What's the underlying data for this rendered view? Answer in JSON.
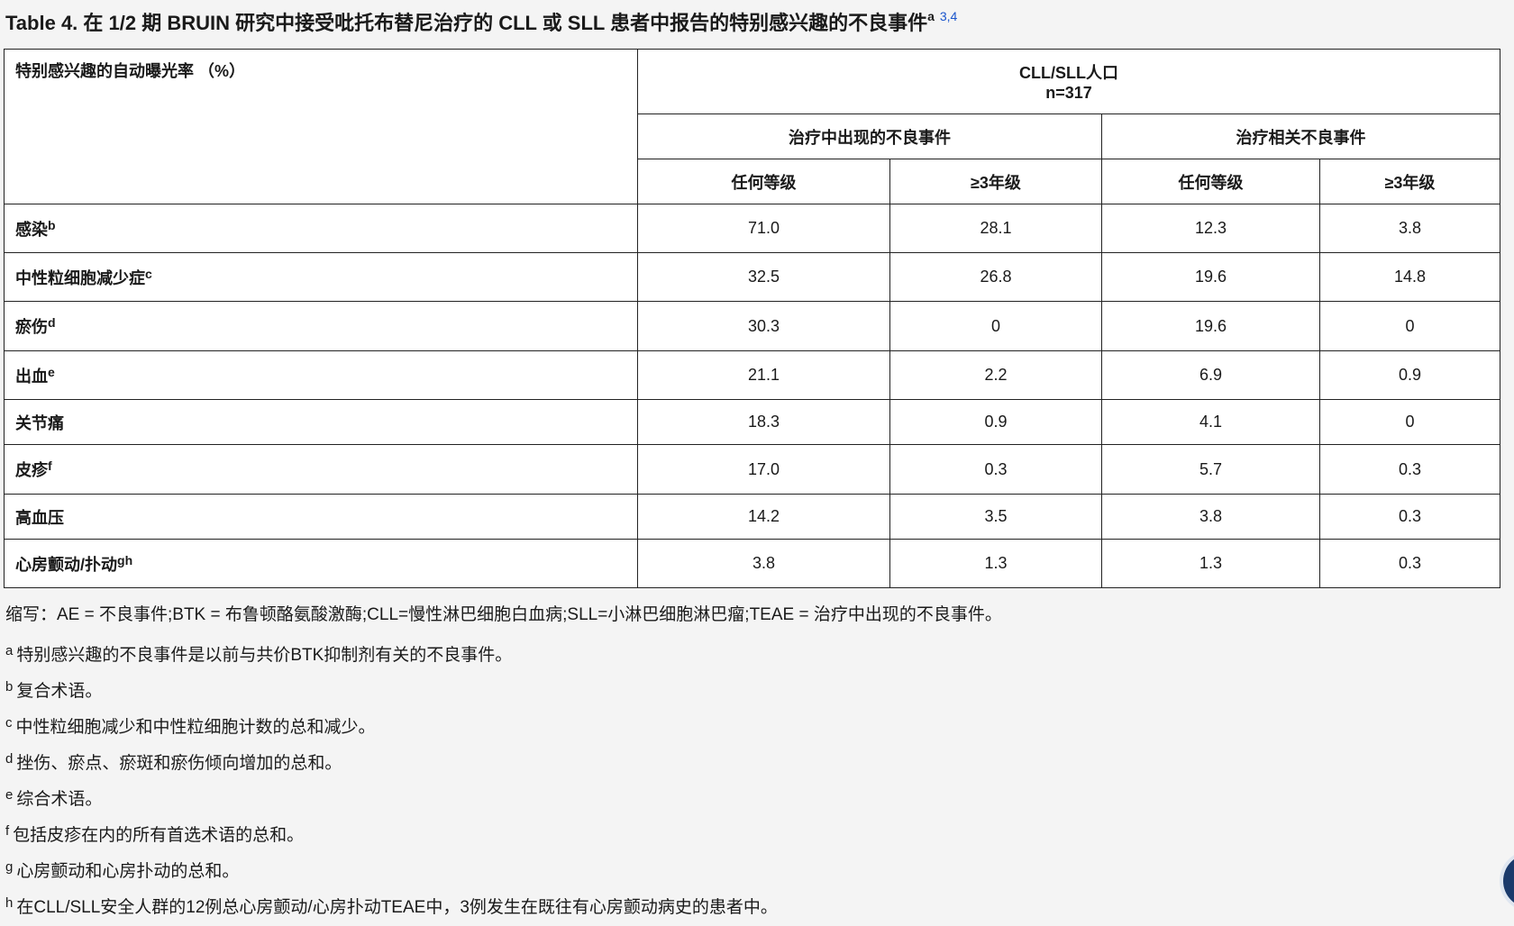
{
  "title": {
    "text": "Table 4. 在 1/2 期 BRUIN 研究中接受吡托布替尼治疗的 CLL 或 SLL 患者中报告的特别感兴趣的不良事件",
    "sup": "a",
    "refs": "3,4"
  },
  "table": {
    "corner_label": "特别感兴趣的自动曝光率 （%）",
    "population_line1": "CLL/SLL人口",
    "population_line2": "n=317",
    "group_teae": "治疗中出现的不良事件",
    "group_trae": "治疗相关不良事件",
    "col_any": "任何等级",
    "col_ge3": "≥3年级",
    "rows": [
      {
        "label": "感染",
        "sup": "b",
        "values": [
          "71.0",
          "28.1",
          "12.3",
          "3.8"
        ]
      },
      {
        "label": "中性粒细胞减少症",
        "sup": "c",
        "values": [
          "32.5",
          "26.8",
          "19.6",
          "14.8"
        ]
      },
      {
        "label": "瘀伤",
        "sup": "d",
        "values": [
          "30.3",
          "0",
          "19.6",
          "0"
        ]
      },
      {
        "label": "出血",
        "sup": "e",
        "values": [
          "21.1",
          "2.2",
          "6.9",
          "0.9"
        ]
      },
      {
        "label": "关节痛",
        "sup": "",
        "values": [
          "18.3",
          "0.9",
          "4.1",
          "0"
        ]
      },
      {
        "label": "皮疹",
        "sup": "f",
        "values": [
          "17.0",
          "0.3",
          "5.7",
          "0.3"
        ]
      },
      {
        "label": "高血压",
        "sup": "",
        "values": [
          "14.2",
          "3.5",
          "3.8",
          "0.3"
        ]
      },
      {
        "label": "心房颤动/扑动",
        "sup": "gh",
        "values": [
          "3.8",
          "1.3",
          "1.3",
          "0.3"
        ]
      }
    ]
  },
  "footnotes": {
    "abbrev": "缩写：AE = 不良事件;BTK = 布鲁顿酪氨酸激酶;CLL=慢性淋巴细胞白血病;SLL=小淋巴细胞淋巴瘤;TEAE = 治疗中出现的不良事件。",
    "items": [
      {
        "mark": "a",
        "text": "特别感兴趣的不良事件是以前与共价BTK抑制剂有关的不良事件。"
      },
      {
        "mark": "b",
        "text": "复合术语。"
      },
      {
        "mark": "c",
        "text": "中性粒细胞减少和中性粒细胞计数的总和减少。"
      },
      {
        "mark": "d",
        "text": "挫伤、瘀点、瘀斑和瘀伤倾向增加的总和。"
      },
      {
        "mark": "e",
        "text": "综合术语。"
      },
      {
        "mark": "f",
        "text": "包括皮疹在内的所有首选术语的总和。"
      },
      {
        "mark": "g",
        "text": "心房颤动和心房扑动的总和。"
      },
      {
        "mark": "h",
        "text": "在CLL/SLL安全人群的12例总心房颤动/心房扑动TEAE中，3例发生在既往有心房颤动病史的患者中。"
      }
    ]
  }
}
